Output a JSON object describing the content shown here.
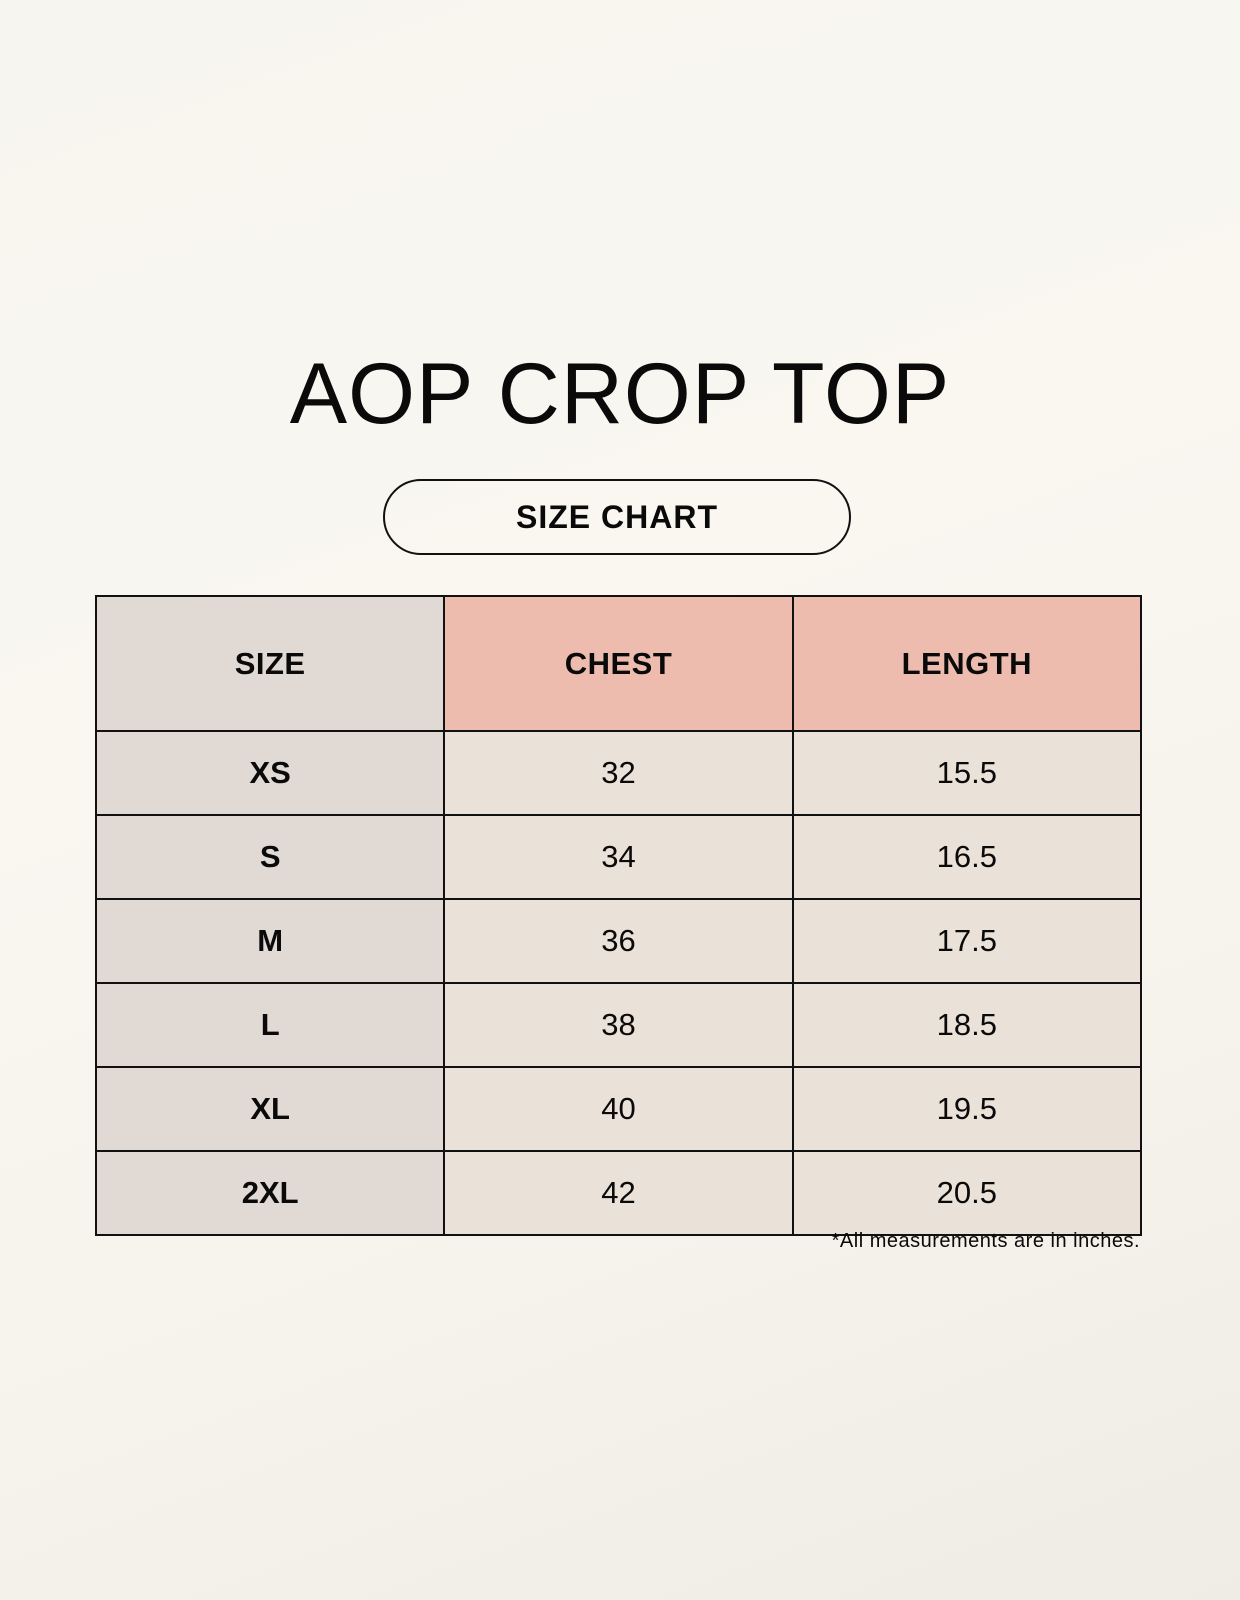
{
  "title": "AOP CROP TOP",
  "subtitle": "SIZE CHART",
  "table": {
    "headers": [
      "SIZE",
      "CHEST",
      "LENGTH"
    ],
    "rows": [
      [
        "XS",
        "32",
        "15.5"
      ],
      [
        "S",
        "34",
        "16.5"
      ],
      [
        "M",
        "36",
        "17.5"
      ],
      [
        "L",
        "38",
        "18.5"
      ],
      [
        "XL",
        "40",
        "19.5"
      ],
      [
        "2XL",
        "42",
        "20.5"
      ]
    ]
  },
  "footnote": "*All measurements are in inches.",
  "colors": {
    "size_column": "#e0d9d4",
    "header_accent": "#edbcae",
    "value_cells": "#eae2d8"
  }
}
